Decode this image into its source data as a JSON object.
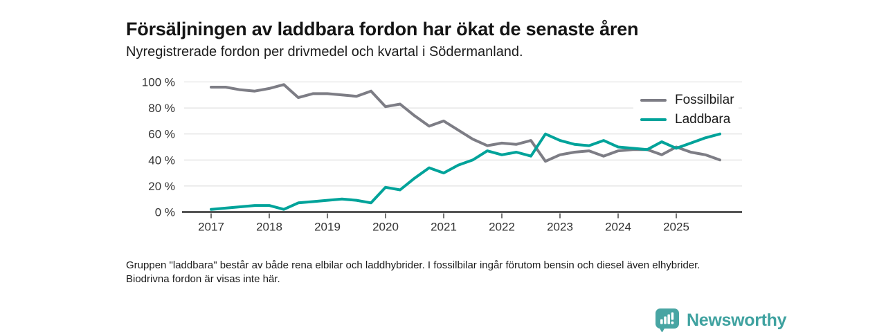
{
  "title": "Försäljningen av laddbara fordon har ökat de senaste åren",
  "subtitle": "Nyregistrerade fordon per drivmedel och kvartal i Södermanland.",
  "footnote": "Gruppen \"laddbara\" består av både rena elbilar och laddhybrider. I fossilbilar ingår förutom bensin och diesel även elhybrider. Biodrivna fordon är visas inte här.",
  "branding": {
    "logo_text": "Newsworthy",
    "logo_color": "#3fa2a0",
    "logo_mark_color": "#48a5a3"
  },
  "colors": {
    "fossil_line": "#7d7d85",
    "laddbara_line": "#00a39a",
    "gridline": "#d9d9d9",
    "axis": "#2e2e2e",
    "tick_text": "#333333",
    "background": "#ffffff"
  },
  "chart_data": {
    "type": "line",
    "title": "Försäljningen av laddbara fordon har ökat de senaste åren",
    "subtitle": "Nyregistrerade fordon per drivmedel och kvartal i Södermanland.",
    "xlabel": "",
    "ylabel": "",
    "ylim": [
      0,
      100
    ],
    "grid": "horizontal",
    "legend_position": "top-right",
    "y_ticks": [
      0,
      20,
      40,
      60,
      80,
      100
    ],
    "y_tick_labels": [
      "0 %",
      "20 %",
      "40 %",
      "60 %",
      "80 %",
      "100 %"
    ],
    "x_tick_labels": [
      "2017",
      "2018",
      "2019",
      "2020",
      "2021",
      "2022",
      "2023",
      "2024",
      "2025"
    ],
    "x": [
      "2017 Q1",
      "2017 Q2",
      "2017 Q3",
      "2017 Q4",
      "2018 Q1",
      "2018 Q2",
      "2018 Q3",
      "2018 Q4",
      "2019 Q1",
      "2019 Q2",
      "2019 Q3",
      "2019 Q4",
      "2020 Q1",
      "2020 Q2",
      "2020 Q3",
      "2020 Q4",
      "2021 Q1",
      "2021 Q2",
      "2021 Q3",
      "2021 Q4",
      "2022 Q1",
      "2022 Q2",
      "2022 Q3",
      "2022 Q4",
      "2023 Q1",
      "2023 Q2",
      "2023 Q3",
      "2023 Q4",
      "2024 Q1",
      "2024 Q2",
      "2024 Q3",
      "2024 Q4",
      "2025 Q1",
      "2025 Q2",
      "2025 Q3",
      "2025 Q4"
    ],
    "series": [
      {
        "name": "Fossilbilar",
        "color": "#7d7d85",
        "values": [
          96,
          96,
          94,
          93,
          95,
          98,
          88,
          91,
          91,
          90,
          89,
          93,
          81,
          83,
          74,
          66,
          70,
          63,
          56,
          51,
          53,
          52,
          55,
          39,
          44,
          46,
          47,
          43,
          47,
          48,
          48,
          44,
          50,
          46,
          44,
          40
        ]
      },
      {
        "name": "Laddbara",
        "color": "#00a39a",
        "values": [
          2,
          3,
          4,
          5,
          5,
          2,
          7,
          8,
          9,
          10,
          9,
          7,
          19,
          17,
          26,
          34,
          30,
          36,
          40,
          47,
          44,
          46,
          43,
          60,
          55,
          52,
          51,
          55,
          50,
          49,
          48,
          54,
          49,
          53,
          57,
          60
        ]
      }
    ]
  }
}
